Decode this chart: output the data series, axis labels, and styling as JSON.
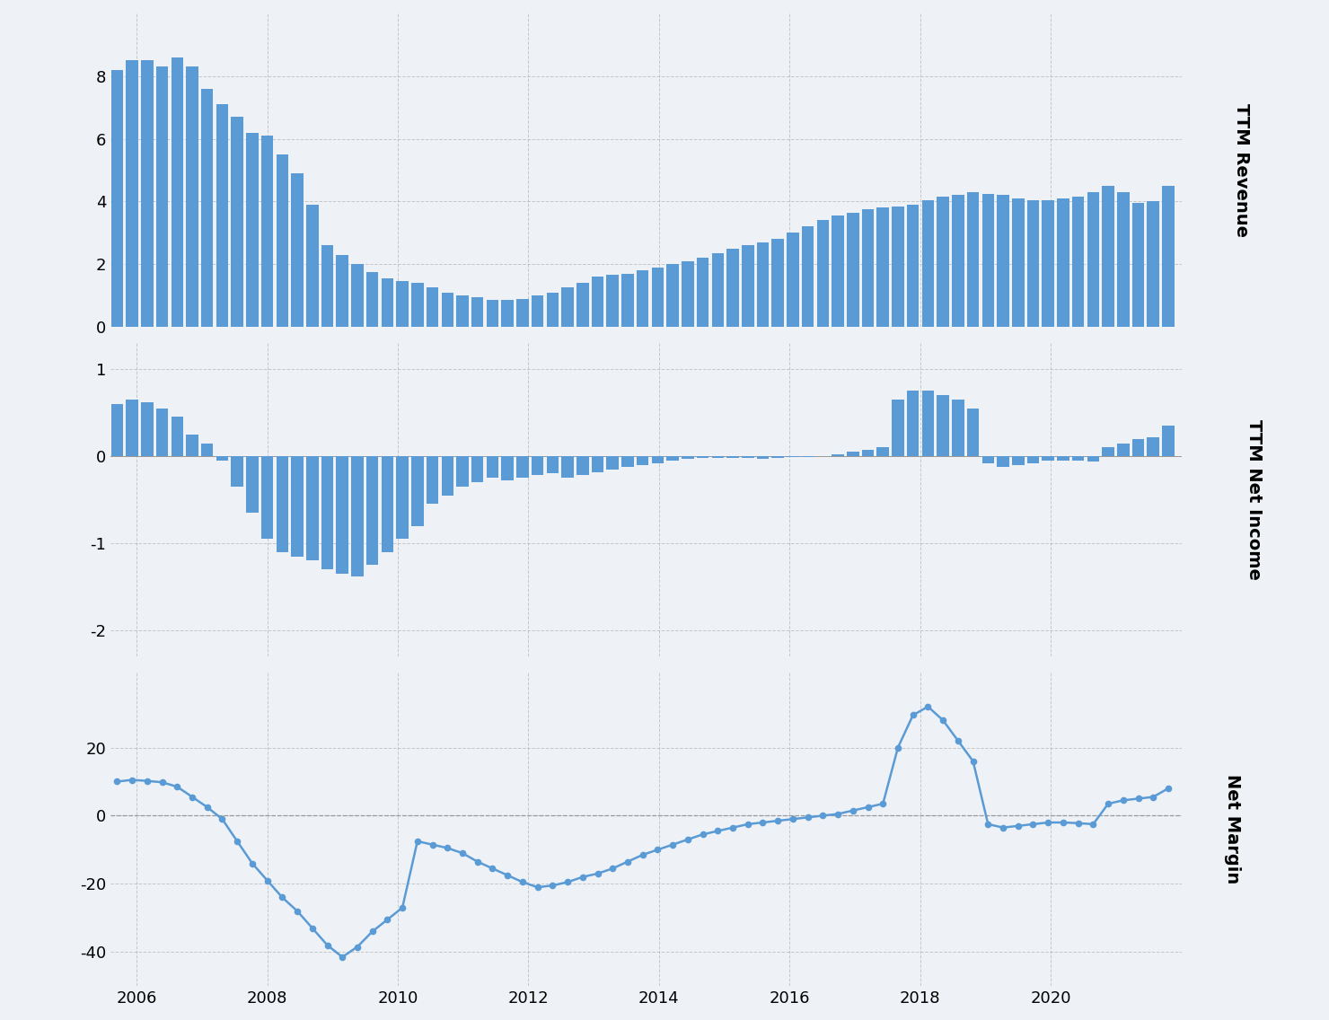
{
  "background_color": "#eef2f7",
  "bar_color": "#5b9bd5",
  "line_color": "#5b9bd5",
  "grid_color": "#aaaaaa",
  "ylabel1": "TTM Revenue",
  "ylabel2": "TTM Net Income",
  "ylabel3": "Net Margin",
  "xlabel_years": [
    "2006",
    "2008",
    "2010",
    "2012",
    "2014",
    "2016",
    "2018",
    "2020"
  ],
  "year_start": 2005.7,
  "year_end": 2021.8,
  "revenue": [
    8.2,
    8.5,
    8.5,
    8.3,
    8.6,
    8.3,
    7.6,
    7.1,
    6.7,
    6.2,
    6.1,
    5.5,
    4.9,
    3.9,
    2.6,
    2.3,
    2.0,
    1.75,
    1.55,
    1.45,
    1.4,
    1.25,
    1.1,
    1.0,
    0.95,
    0.85,
    0.85,
    0.9,
    1.0,
    1.1,
    1.25,
    1.4,
    1.6,
    1.65,
    1.7,
    1.8,
    1.9,
    2.0,
    2.1,
    2.2,
    2.35,
    2.5,
    2.6,
    2.7,
    2.8,
    3.0,
    3.2,
    3.4,
    3.55,
    3.65,
    3.75,
    3.8,
    3.85,
    3.9,
    4.05,
    4.15,
    4.2,
    4.3,
    4.25,
    4.2,
    4.1,
    4.05,
    4.05,
    4.1,
    4.15,
    4.3,
    4.5,
    4.3,
    3.95,
    4.0,
    4.5
  ],
  "net_income": [
    0.6,
    0.65,
    0.62,
    0.55,
    0.45,
    0.25,
    0.15,
    -0.05,
    -0.35,
    -0.65,
    -0.95,
    -1.1,
    -1.15,
    -1.2,
    -1.3,
    -1.35,
    -1.38,
    -1.25,
    -1.1,
    -0.95,
    -0.8,
    -0.55,
    -0.45,
    -0.35,
    -0.3,
    -0.25,
    -0.28,
    -0.25,
    -0.22,
    -0.2,
    -0.25,
    -0.22,
    -0.18,
    -0.15,
    -0.12,
    -0.1,
    -0.08,
    -0.05,
    -0.03,
    -0.02,
    -0.02,
    -0.02,
    -0.02,
    -0.03,
    -0.02,
    -0.01,
    -0.01,
    0.0,
    0.02,
    0.05,
    0.07,
    0.1,
    0.65,
    0.75,
    0.75,
    0.7,
    0.65,
    0.55,
    -0.08,
    -0.12,
    -0.1,
    -0.08,
    -0.05,
    -0.05,
    -0.05,
    -0.06,
    0.1,
    0.15,
    0.2,
    0.22,
    0.35
  ],
  "net_margin": [
    10.0,
    10.5,
    10.2,
    9.8,
    8.5,
    5.5,
    2.5,
    -1.0,
    -7.5,
    -14.0,
    -19.0,
    -24.0,
    -28.0,
    -33.0,
    -38.0,
    -41.5,
    -38.5,
    -34.0,
    -30.5,
    -27.0,
    -7.5,
    -8.5,
    -9.5,
    -11.0,
    -13.5,
    -15.5,
    -17.5,
    -19.5,
    -21.0,
    -20.5,
    -19.5,
    -18.0,
    -17.0,
    -15.5,
    -13.5,
    -11.5,
    -10.0,
    -8.5,
    -7.0,
    -5.5,
    -4.5,
    -3.5,
    -2.5,
    -2.0,
    -1.5,
    -1.0,
    -0.5,
    0.0,
    0.5,
    1.5,
    2.5,
    3.5,
    20.0,
    29.5,
    32.0,
    28.0,
    22.0,
    16.0,
    -2.5,
    -3.5,
    -3.0,
    -2.5,
    -2.0,
    -2.0,
    -2.2,
    -2.5,
    3.5,
    4.5,
    5.0,
    5.5,
    8.0
  ]
}
